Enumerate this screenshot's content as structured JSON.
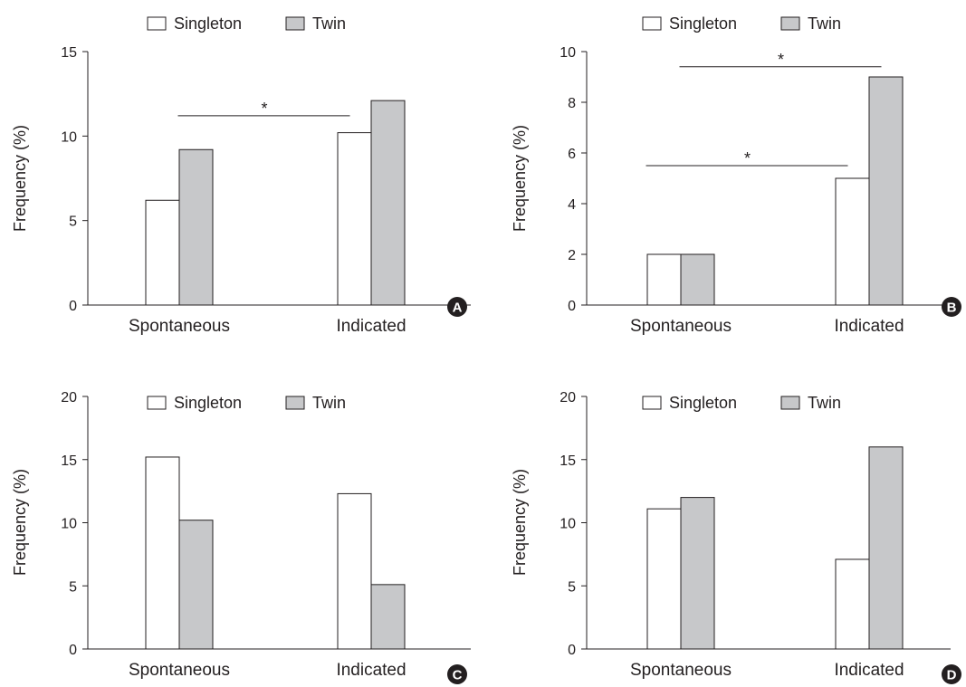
{
  "chart_data": [
    {
      "type": "bar",
      "panel": "A",
      "categories": [
        "Spontaneous",
        "Indicated"
      ],
      "series": [
        {
          "name": "Singleton",
          "values": [
            6.2,
            10.2
          ]
        },
        {
          "name": "Twin",
          "values": [
            9.2,
            12.1
          ]
        }
      ],
      "ylabel": "Frequency (%)",
      "ylim": [
        0,
        15
      ],
      "yticks": [
        0,
        5,
        10,
        15
      ],
      "legend": "top",
      "significance": [
        {
          "from": [
            "Spontaneous",
            "Twin"
          ],
          "to": [
            "Indicated",
            "Singleton"
          ],
          "y": 11.2,
          "label": "*"
        }
      ]
    },
    {
      "type": "bar",
      "panel": "B",
      "categories": [
        "Spontaneous",
        "Indicated"
      ],
      "series": [
        {
          "name": "Singleton",
          "values": [
            2.0,
            5.0
          ]
        },
        {
          "name": "Twin",
          "values": [
            2.0,
            9.0
          ]
        }
      ],
      "ylabel": "Frequency (%)",
      "ylim": [
        0,
        10
      ],
      "yticks": [
        0,
        2,
        4,
        6,
        8,
        10
      ],
      "legend": "top",
      "significance": [
        {
          "from": [
            "Spontaneous",
            "Singleton"
          ],
          "to": [
            "Indicated",
            "Singleton"
          ],
          "y": 5.5,
          "label": "*"
        },
        {
          "from": [
            "Spontaneous",
            "Twin"
          ],
          "to": [
            "Indicated",
            "Twin"
          ],
          "y": 9.4,
          "label": "*"
        }
      ]
    },
    {
      "type": "bar",
      "panel": "C",
      "categories": [
        "Spontaneous",
        "Indicated"
      ],
      "series": [
        {
          "name": "Singleton",
          "values": [
            15.2,
            12.3
          ]
        },
        {
          "name": "Twin",
          "values": [
            10.2,
            5.1
          ]
        }
      ],
      "ylabel": "Frequency (%)",
      "ylim": [
        0,
        20
      ],
      "yticks": [
        0,
        5,
        10,
        15,
        20
      ],
      "legend": "top",
      "significance": []
    },
    {
      "type": "bar",
      "panel": "D",
      "categories": [
        "Spontaneous",
        "Indicated"
      ],
      "series": [
        {
          "name": "Singleton",
          "values": [
            11.1,
            7.1
          ]
        },
        {
          "name": "Twin",
          "values": [
            12.0,
            16.0
          ]
        }
      ],
      "ylabel": "Frequency (%)",
      "ylim": [
        0,
        20
      ],
      "yticks": [
        0,
        5,
        10,
        15,
        20
      ],
      "legend": "top",
      "significance": []
    }
  ],
  "colors": {
    "singleton_fill": "#ffffff",
    "twin_fill": "#c7c8ca",
    "stroke": "#231f20",
    "badge": "#231f20"
  }
}
